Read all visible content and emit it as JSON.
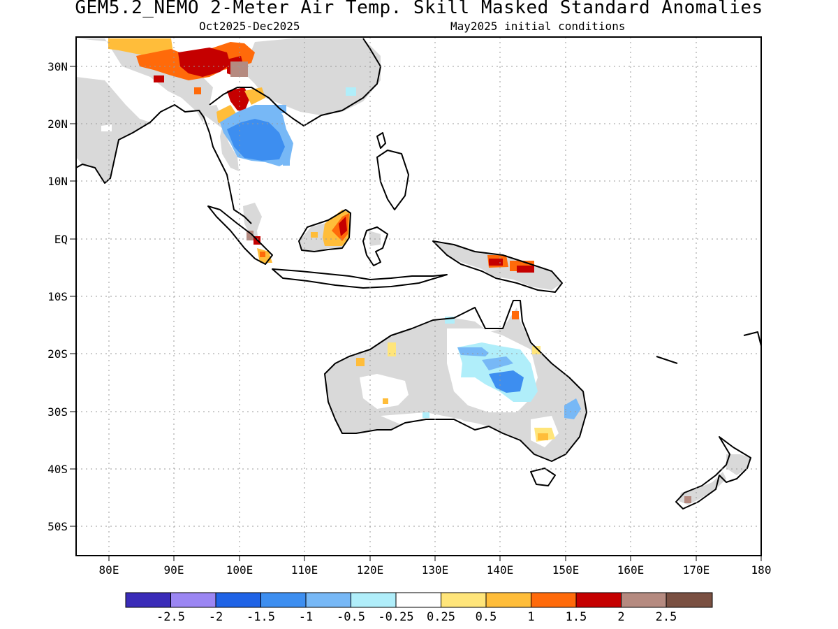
{
  "title": "GEM5.2_NEMO 2-Meter Air Temp. Skill Masked Standard Anomalies",
  "subtitle_period": "Oct2025-Dec2025",
  "subtitle_init": "May2025 initial conditions",
  "map": {
    "lon_range": [
      75,
      180
    ],
    "lat_range": [
      -55,
      35
    ],
    "lat_ticks": [
      {
        "value": 30,
        "label": "30N"
      },
      {
        "value": 20,
        "label": "20N"
      },
      {
        "value": 10,
        "label": "10N"
      },
      {
        "value": 0,
        "label": "EQ"
      },
      {
        "value": -10,
        "label": "10S"
      },
      {
        "value": -20,
        "label": "20S"
      },
      {
        "value": -30,
        "label": "30S"
      },
      {
        "value": -40,
        "label": "40S"
      },
      {
        "value": -50,
        "label": "50S"
      }
    ],
    "lon_ticks": [
      {
        "value": 80,
        "label": "80E"
      },
      {
        "value": 90,
        "label": "90E"
      },
      {
        "value": 100,
        "label": "100E"
      },
      {
        "value": 110,
        "label": "110E"
      },
      {
        "value": 120,
        "label": "120E"
      },
      {
        "value": 130,
        "label": "130E"
      },
      {
        "value": 140,
        "label": "140E"
      },
      {
        "value": 150,
        "label": "150E"
      },
      {
        "value": 160,
        "label": "160E"
      },
      {
        "value": 170,
        "label": "170E"
      },
      {
        "value": 180,
        "label": "180"
      }
    ],
    "grid": "dotted",
    "land_mask_color": "#d9d9d9",
    "coast_color": "#000000"
  },
  "colorbar": {
    "colors": [
      "#3a2bb8",
      "#9b86f3",
      "#1f63e6",
      "#3d8ef0",
      "#77b8f6",
      "#b0eefa",
      "#ffffff",
      "#ffe57a",
      "#ffbd3a",
      "#ff6a0a",
      "#c50000",
      "#b58a80",
      "#7a5042"
    ],
    "labels": [
      "-2.5",
      "-2",
      "-1.5",
      "-1",
      "-0.5",
      "-0.25",
      "0.25",
      "0.5",
      "1",
      "1.5",
      "2",
      "2.5"
    ]
  }
}
